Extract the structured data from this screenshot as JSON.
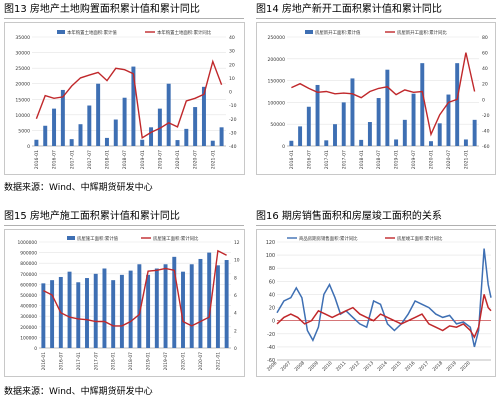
{
  "source_top": "数据来源：Wind、中辉期货研发中心",
  "source_bottom": "数据来源：Wind、中辉期货研发中心",
  "chart_data": [
    {
      "id": "fig13",
      "title": "图13 房地产土地购置面积累计值和累计同比",
      "type": "bar+line",
      "x": [
        "2016-01",
        "2016-04",
        "2016-07",
        "2016-10",
        "2017-01",
        "2017-04",
        "2017-07",
        "2017-10",
        "2018-01",
        "2018-04",
        "2018-07",
        "2018-10",
        "2019-01",
        "2019-04",
        "2019-07",
        "2019-10",
        "2020-01",
        "2020-04",
        "2020-07",
        "2020-10",
        "2021-01",
        "2021-04"
      ],
      "xticks": [
        "2016-01",
        "2016-07",
        "2017-01",
        "2017-07",
        "2018-01",
        "2018-07",
        "2019-01",
        "2019-07",
        "2020-01",
        "2020-07",
        "2021-01"
      ],
      "left_axis": {
        "min": 0,
        "max": 35000,
        "ticks": [
          0,
          5000,
          10000,
          15000,
          20000,
          25000,
          30000,
          35000
        ],
        "labels": [
          "0",
          "5000",
          "10000",
          "15000",
          "20000",
          "25000",
          "30000",
          "35000"
        ]
      },
      "right_axis": {
        "min": -40,
        "max": 40,
        "ticks": [
          -40,
          -30,
          -20,
          -10,
          0,
          10,
          20,
          30,
          40
        ],
        "labels": [
          "-40",
          "-30",
          "-20",
          "-10",
          "0",
          "10",
          "20",
          "30",
          "40"
        ]
      },
      "bar_series": {
        "name": "本年购置土地面积:累计值",
        "color": "#3e6fb3",
        "values": [
          2000,
          6500,
          12000,
          18000,
          2200,
          7000,
          13000,
          20000,
          2600,
          8500,
          15500,
          25500,
          2000,
          6000,
          12000,
          20000,
          1900,
          5500,
          12500,
          19000,
          1700,
          6000
        ]
      },
      "line_series": {
        "name": "本年购置土地面积:累计同比",
        "color": "#c0282b",
        "values": [
          -20,
          -3,
          -5,
          -4,
          4,
          10,
          12,
          14,
          8,
          17,
          16,
          13,
          -34,
          -30,
          -27,
          -23,
          -26,
          -7,
          -5,
          -2,
          22,
          5
        ]
      }
    },
    {
      "id": "fig14",
      "title": "图14 房地产新开工面积累计值和累计同比",
      "type": "bar+line",
      "x": [
        "2016-01",
        "2016-04",
        "2016-07",
        "2016-10",
        "2017-01",
        "2017-04",
        "2017-07",
        "2017-10",
        "2018-01",
        "2018-04",
        "2018-07",
        "2018-10",
        "2019-01",
        "2019-04",
        "2019-07",
        "2019-10",
        "2020-01",
        "2020-04",
        "2020-07",
        "2020-10",
        "2021-01",
        "2021-04"
      ],
      "xticks": [
        "2016-01",
        "2016-07",
        "2017-01",
        "2017-07",
        "2018-01",
        "2018-07",
        "2019-01",
        "2019-07",
        "2020-01",
        "2020-07",
        "2021-01"
      ],
      "left_axis": {
        "min": 0,
        "max": 250000,
        "ticks": [
          0,
          50000,
          100000,
          150000,
          200000,
          250000
        ],
        "labels": [
          "0",
          "50000",
          "100000",
          "150000",
          "200000",
          "250000"
        ]
      },
      "right_axis": {
        "min": -60,
        "max": 80,
        "ticks": [
          -60,
          -40,
          -20,
          0,
          20,
          40,
          60,
          80
        ],
        "labels": [
          "-60",
          "-40",
          "-20",
          "0",
          "20",
          "40",
          "60",
          "80"
        ]
      },
      "bar_series": {
        "name": "房屋新开工面积:累计值",
        "color": "#3e6fb3",
        "values": [
          12000,
          45000,
          90000,
          140000,
          13000,
          50000,
          100000,
          155000,
          14000,
          55000,
          110000,
          175000,
          15000,
          60000,
          120000,
          190000,
          11000,
          52000,
          118000,
          190000,
          15000,
          60000
        ]
      },
      "line_series": {
        "name": "房屋新开工面积:累计同比",
        "color": "#c0282b",
        "values": [
          15,
          20,
          14,
          9,
          10,
          7,
          8,
          7,
          2,
          10,
          14,
          16,
          6,
          12,
          9,
          10,
          -45,
          -20,
          -4,
          0,
          60,
          10
        ]
      }
    },
    {
      "id": "fig15",
      "title": "图15 房地产施工面积累计值和累计同比",
      "type": "bar+line",
      "x": [
        "2016-01",
        "2016-04",
        "2016-07",
        "2016-10",
        "2017-01",
        "2017-04",
        "2017-07",
        "2017-10",
        "2018-01",
        "2018-04",
        "2018-07",
        "2018-10",
        "2019-01",
        "2019-04",
        "2019-07",
        "2019-10",
        "2020-01",
        "2020-04",
        "2020-07",
        "2020-10",
        "2021-01",
        "2021-04"
      ],
      "xticks": [
        "2016-01",
        "2016-07",
        "2017-01",
        "2017-07",
        "2018-01",
        "2018-07",
        "2019-01",
        "2019-07",
        "2020-01",
        "2020-07",
        "2021-01"
      ],
      "left_axis": {
        "min": 0,
        "max": 1000000,
        "ticks": [
          0,
          100000,
          200000,
          300000,
          400000,
          500000,
          600000,
          700000,
          800000,
          900000,
          1000000
        ],
        "labels": [
          "0",
          "100000",
          "200000",
          "300000",
          "400000",
          "500000",
          "600000",
          "700000",
          "800000",
          "900000",
          "1000000"
        ]
      },
      "right_axis": {
        "min": 0,
        "max": 12,
        "ticks": [
          0,
          2,
          4,
          6,
          8,
          10,
          12
        ],
        "labels": [
          "0",
          "2",
          "4",
          "6",
          "8",
          "10",
          "12"
        ]
      },
      "bar_series": {
        "name": "房屋施工面积:累计值",
        "color": "#3e6fb3",
        "values": [
          610000,
          640000,
          670000,
          720000,
          620000,
          660000,
          700000,
          750000,
          640000,
          690000,
          730000,
          790000,
          690000,
          750000,
          790000,
          860000,
          720000,
          790000,
          840000,
          900000,
          780000,
          830000
        ]
      },
      "line_series": {
        "name": "房屋施工面积:累计同比",
        "color": "#c0282b",
        "values": [
          6.5,
          6.0,
          4.0,
          3.5,
          3.3,
          3.2,
          3.0,
          3.0,
          2.5,
          2.5,
          3.0,
          3.8,
          8.7,
          8.8,
          9.0,
          8.8,
          3.0,
          2.5,
          3.0,
          3.5,
          11.0,
          10.5
        ]
      }
    },
    {
      "id": "fig16",
      "title": "图16 期房销售面积和房屋竣工面积的关系",
      "type": "line",
      "x_start": 2006,
      "x_end": 2021.5,
      "xticks": [
        2006,
        2007,
        2008,
        2009,
        2010,
        2011,
        2012,
        2013,
        2014,
        2015,
        2016,
        2017,
        2018,
        2019,
        2020
      ],
      "y_axis": {
        "min": -60,
        "max": 120,
        "ticks": [
          -60,
          -40,
          -20,
          0,
          20,
          40,
          60,
          80,
          100,
          120
        ],
        "labels": [
          "-60",
          "-40",
          "-20",
          "0",
          "20",
          "40",
          "60",
          "80",
          "100",
          "120"
        ]
      },
      "series": [
        {
          "name": "商品房期房销售面积:累计同比",
          "color": "#3e6fb3",
          "points": [
            [
              2006,
              12
            ],
            [
              2006.5,
              30
            ],
            [
              2007,
              35
            ],
            [
              2007.4,
              50
            ],
            [
              2007.8,
              35
            ],
            [
              2008.2,
              -15
            ],
            [
              2008.6,
              -30
            ],
            [
              2009,
              -10
            ],
            [
              2009.4,
              40
            ],
            [
              2009.8,
              55
            ],
            [
              2010.2,
              35
            ],
            [
              2010.6,
              10
            ],
            [
              2011,
              15
            ],
            [
              2011.5,
              5
            ],
            [
              2012,
              -5
            ],
            [
              2012.5,
              -10
            ],
            [
              2013,
              30
            ],
            [
              2013.5,
              25
            ],
            [
              2014,
              -5
            ],
            [
              2014.5,
              -15
            ],
            [
              2015,
              -5
            ],
            [
              2015.5,
              10
            ],
            [
              2016,
              30
            ],
            [
              2016.5,
              25
            ],
            [
              2017,
              20
            ],
            [
              2017.5,
              10
            ],
            [
              2018,
              5
            ],
            [
              2018.5,
              8
            ],
            [
              2019,
              -5
            ],
            [
              2019.5,
              -2
            ],
            [
              2020,
              -10
            ],
            [
              2020.3,
              -40
            ],
            [
              2020.6,
              -15
            ],
            [
              2021,
              110
            ],
            [
              2021.3,
              55
            ],
            [
              2021.5,
              35
            ]
          ]
        },
        {
          "name": "房屋竣工面积:累计同比",
          "color": "#c0282b",
          "points": [
            [
              2006,
              -5
            ],
            [
              2006.5,
              5
            ],
            [
              2007,
              10
            ],
            [
              2007.5,
              5
            ],
            [
              2008,
              -5
            ],
            [
              2008.5,
              0
            ],
            [
              2009,
              15
            ],
            [
              2009.5,
              10
            ],
            [
              2010,
              5
            ],
            [
              2010.5,
              10
            ],
            [
              2011,
              15
            ],
            [
              2011.5,
              20
            ],
            [
              2012,
              10
            ],
            [
              2012.5,
              5
            ],
            [
              2013,
              0
            ],
            [
              2013.5,
              10
            ],
            [
              2014,
              5
            ],
            [
              2014.5,
              0
            ],
            [
              2015,
              -5
            ],
            [
              2015.5,
              0
            ],
            [
              2016,
              5
            ],
            [
              2016.5,
              10
            ],
            [
              2017,
              -5
            ],
            [
              2017.5,
              -10
            ],
            [
              2018,
              -15
            ],
            [
              2018.5,
              -8
            ],
            [
              2019,
              -10
            ],
            [
              2019.5,
              -5
            ],
            [
              2020,
              -15
            ],
            [
              2020.3,
              -25
            ],
            [
              2020.6,
              -10
            ],
            [
              2021,
              40
            ],
            [
              2021.3,
              20
            ],
            [
              2021.5,
              15
            ]
          ]
        }
      ],
      "zero_line_color": "#c0282b"
    }
  ]
}
